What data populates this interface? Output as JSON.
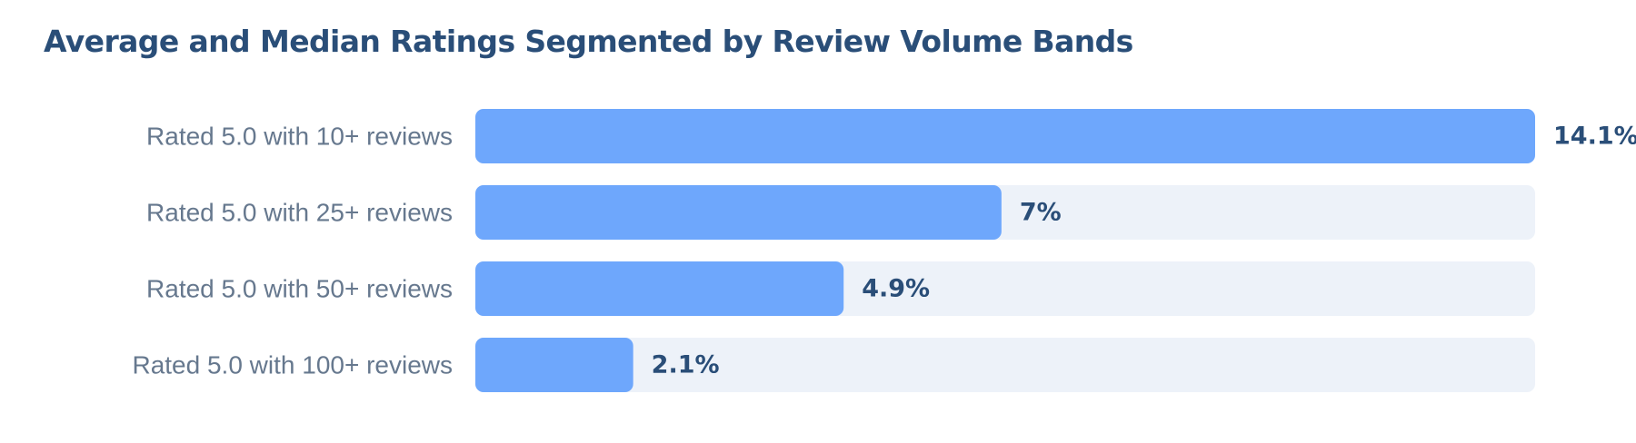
{
  "chart_data": {
    "type": "bar",
    "orientation": "horizontal",
    "title": "Average and Median Ratings Segmented by Review Volume Bands",
    "xlabel": "",
    "ylabel": "",
    "categories": [
      "Rated 5.0 with 10+ reviews",
      "Rated 5.0 with 25+ reviews",
      "Rated 5.0 with 50+ reviews",
      "Rated 5.0 with 100+ reviews"
    ],
    "values": [
      14.1,
      7,
      4.9,
      2.1
    ],
    "value_labels": [
      "14.1%",
      "7%",
      "4.9%",
      "2.1%"
    ],
    "unit": "%",
    "xlim": [
      0,
      14.1
    ],
    "grid": false,
    "legend": "none",
    "colors": {
      "bar": "#6ea7fc",
      "track": "#edf2f9",
      "title": "#2a4e78",
      "category_text": "#66788e",
      "value_text": "#2a4e78"
    }
  }
}
